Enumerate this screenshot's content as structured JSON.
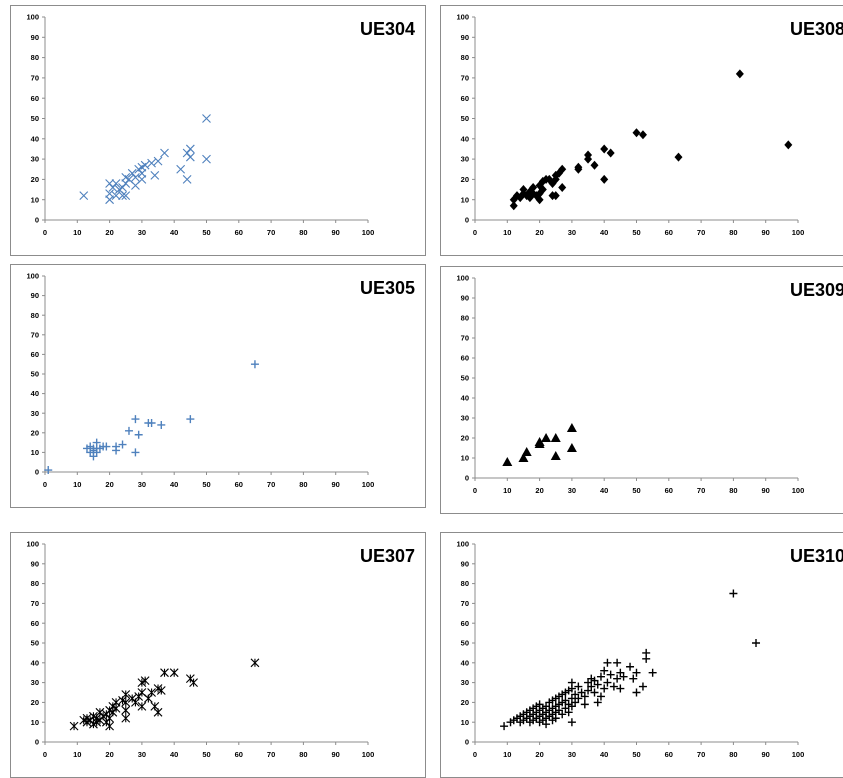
{
  "chart_data": [
    {
      "type": "scatter",
      "title": "UE304",
      "marker": "x",
      "color": "#4f81bd",
      "xlim": [
        0,
        100
      ],
      "ylim": [
        0,
        100
      ],
      "xticks": [
        0,
        10,
        20,
        30,
        40,
        50,
        60,
        70,
        80,
        90,
        100
      ],
      "yticks": [
        0,
        10,
        20,
        30,
        40,
        50,
        60,
        70,
        80,
        90,
        100
      ],
      "grid": false,
      "series": [
        {
          "points": [
            [
              12,
              12
            ],
            [
              20,
              10
            ],
            [
              20,
              13
            ],
            [
              20,
              18
            ],
            [
              21,
              16
            ],
            [
              22,
              12
            ],
            [
              22,
              18
            ],
            [
              23,
              15
            ],
            [
              24,
              12
            ],
            [
              24,
              16
            ],
            [
              25,
              12
            ],
            [
              25,
              18
            ],
            [
              25,
              21
            ],
            [
              26,
              20
            ],
            [
              27,
              23
            ],
            [
              28,
              17
            ],
            [
              28,
              21
            ],
            [
              29,
              25
            ],
            [
              30,
              20
            ],
            [
              30,
              23
            ],
            [
              30,
              26
            ],
            [
              31,
              27
            ],
            [
              33,
              28
            ],
            [
              34,
              22
            ],
            [
              35,
              29
            ],
            [
              37,
              33
            ],
            [
              42,
              25
            ],
            [
              44,
              20
            ],
            [
              44,
              33
            ],
            [
              45,
              31
            ],
            [
              45,
              35
            ],
            [
              50,
              30
            ],
            [
              50,
              50
            ]
          ]
        }
      ]
    },
    {
      "type": "scatter",
      "title": "UE308",
      "marker": "diamond",
      "color": "#000000",
      "xlim": [
        0,
        100
      ],
      "ylim": [
        0,
        100
      ],
      "xticks": [
        0,
        10,
        20,
        30,
        40,
        50,
        60,
        70,
        80,
        90,
        100
      ],
      "yticks": [
        0,
        10,
        20,
        30,
        40,
        50,
        60,
        70,
        80,
        90,
        100
      ],
      "grid": false,
      "series": [
        {
          "points": [
            [
              12,
              7
            ],
            [
              12,
              10
            ],
            [
              13,
              12
            ],
            [
              14,
              11
            ],
            [
              15,
              13
            ],
            [
              15,
              15
            ],
            [
              16,
              12
            ],
            [
              17,
              11
            ],
            [
              17,
              14
            ],
            [
              18,
              13
            ],
            [
              18,
              16
            ],
            [
              19,
              12
            ],
            [
              20,
              10
            ],
            [
              20,
              13
            ],
            [
              20,
              17
            ],
            [
              21,
              19
            ],
            [
              21,
              15
            ],
            [
              22,
              20
            ],
            [
              23,
              20
            ],
            [
              24,
              12
            ],
            [
              24,
              18
            ],
            [
              25,
              12
            ],
            [
              25,
              20
            ],
            [
              25,
              22
            ],
            [
              26,
              23
            ],
            [
              27,
              16
            ],
            [
              27,
              25
            ],
            [
              32,
              25
            ],
            [
              32,
              26
            ],
            [
              35,
              30
            ],
            [
              35,
              32
            ],
            [
              37,
              27
            ],
            [
              40,
              20
            ],
            [
              40,
              35
            ],
            [
              42,
              33
            ],
            [
              50,
              43
            ],
            [
              52,
              42
            ],
            [
              63,
              31
            ],
            [
              82,
              72
            ],
            [
              97,
              37
            ]
          ]
        }
      ]
    },
    {
      "type": "scatter",
      "title": "UE305",
      "marker": "plus",
      "color": "#4f81bd",
      "xlim": [
        0,
        100
      ],
      "ylim": [
        0,
        100
      ],
      "xticks": [
        0,
        10,
        20,
        30,
        40,
        50,
        60,
        70,
        80,
        90,
        100
      ],
      "yticks": [
        0,
        10,
        20,
        30,
        40,
        50,
        60,
        70,
        80,
        90,
        100
      ],
      "grid": false,
      "series": [
        {
          "points": [
            [
              1,
              1
            ],
            [
              13,
              12
            ],
            [
              14,
              10
            ],
            [
              14,
              13
            ],
            [
              15,
              8
            ],
            [
              15,
              11
            ],
            [
              15,
              12
            ],
            [
              16,
              10
            ],
            [
              16,
              12
            ],
            [
              16,
              15
            ],
            [
              17,
              12
            ],
            [
              18,
              13
            ],
            [
              19,
              13
            ],
            [
              22,
              11
            ],
            [
              22,
              13
            ],
            [
              24,
              14
            ],
            [
              26,
              21
            ],
            [
              28,
              10
            ],
            [
              28,
              27
            ],
            [
              29,
              19
            ],
            [
              32,
              25
            ],
            [
              33,
              25
            ],
            [
              36,
              24
            ],
            [
              45,
              27
            ],
            [
              65,
              55
            ]
          ]
        }
      ]
    },
    {
      "type": "scatter",
      "title": "UE309",
      "marker": "triangle",
      "color": "#000000",
      "xlim": [
        0,
        100
      ],
      "ylim": [
        0,
        100
      ],
      "xticks": [
        0,
        10,
        20,
        30,
        40,
        50,
        60,
        70,
        80,
        90,
        100
      ],
      "yticks": [
        0,
        10,
        20,
        30,
        40,
        50,
        60,
        70,
        80,
        90,
        100
      ],
      "grid": false,
      "series": [
        {
          "points": [
            [
              10,
              8
            ],
            [
              15,
              10
            ],
            [
              16,
              13
            ],
            [
              20,
              17
            ],
            [
              20,
              18
            ],
            [
              22,
              20
            ],
            [
              25,
              11
            ],
            [
              25,
              20
            ],
            [
              30,
              15
            ],
            [
              30,
              25
            ]
          ]
        }
      ]
    },
    {
      "type": "scatter",
      "title": "UE307",
      "marker": "asterisk",
      "color": "#000000",
      "xlim": [
        0,
        100
      ],
      "ylim": [
        0,
        100
      ],
      "xticks": [
        0,
        10,
        20,
        30,
        40,
        50,
        60,
        70,
        80,
        90,
        100
      ],
      "yticks": [
        0,
        10,
        20,
        30,
        40,
        50,
        60,
        70,
        80,
        90,
        100
      ],
      "grid": false,
      "series": [
        {
          "points": [
            [
              9,
              8
            ],
            [
              12,
              11
            ],
            [
              13,
              10
            ],
            [
              13,
              12
            ],
            [
              14,
              11
            ],
            [
              15,
              9
            ],
            [
              15,
              13
            ],
            [
              16,
              10
            ],
            [
              16,
              12
            ],
            [
              17,
              11
            ],
            [
              17,
              15
            ],
            [
              18,
              13
            ],
            [
              19,
              10
            ],
            [
              19,
              14
            ],
            [
              20,
              8
            ],
            [
              20,
              12
            ],
            [
              20,
              16
            ],
            [
              21,
              15
            ],
            [
              21,
              18
            ],
            [
              22,
              17
            ],
            [
              22,
              20
            ],
            [
              24,
              21
            ],
            [
              25,
              12
            ],
            [
              25,
              16
            ],
            [
              25,
              20
            ],
            [
              25,
              24
            ],
            [
              27,
              22
            ],
            [
              28,
              20
            ],
            [
              29,
              23
            ],
            [
              30,
              18
            ],
            [
              30,
              25
            ],
            [
              30,
              30
            ],
            [
              31,
              31
            ],
            [
              32,
              22
            ],
            [
              33,
              25
            ],
            [
              34,
              18
            ],
            [
              35,
              15
            ],
            [
              35,
              27
            ],
            [
              36,
              26
            ],
            [
              37,
              35
            ],
            [
              40,
              35
            ],
            [
              45,
              32
            ],
            [
              46,
              30
            ],
            [
              65,
              40
            ]
          ]
        }
      ]
    },
    {
      "type": "scatter",
      "title": "UE310",
      "marker": "plus",
      "color": "#000000",
      "xlim": [
        0,
        100
      ],
      "ylim": [
        0,
        100
      ],
      "xticks": [
        0,
        10,
        20,
        30,
        40,
        50,
        60,
        70,
        80,
        90,
        100
      ],
      "yticks": [
        0,
        10,
        20,
        30,
        40,
        50,
        60,
        70,
        80,
        90,
        100
      ],
      "grid": false,
      "series": [
        {
          "points": [
            [
              9,
              8
            ],
            [
              11,
              10
            ],
            [
              12,
              11
            ],
            [
              13,
              12
            ],
            [
              14,
              10
            ],
            [
              14,
              13
            ],
            [
              15,
              11
            ],
            [
              15,
              14
            ],
            [
              16,
              12
            ],
            [
              16,
              15
            ],
            [
              17,
              10
            ],
            [
              17,
              13
            ],
            [
              17,
              16
            ],
            [
              18,
              11
            ],
            [
              18,
              14
            ],
            [
              18,
              17
            ],
            [
              19,
              12
            ],
            [
              19,
              15
            ],
            [
              19,
              18
            ],
            [
              20,
              10
            ],
            [
              20,
              13
            ],
            [
              20,
              16
            ],
            [
              20,
              19
            ],
            [
              21,
              11
            ],
            [
              21,
              14
            ],
            [
              21,
              17
            ],
            [
              22,
              9
            ],
            [
              22,
              12
            ],
            [
              22,
              15
            ],
            [
              22,
              18
            ],
            [
              23,
              13
            ],
            [
              23,
              16
            ],
            [
              23,
              20
            ],
            [
              24,
              11
            ],
            [
              24,
              14
            ],
            [
              24,
              17
            ],
            [
              24,
              21
            ],
            [
              25,
              12
            ],
            [
              25,
              15
            ],
            [
              25,
              18
            ],
            [
              25,
              22
            ],
            [
              26,
              16
            ],
            [
              26,
              19
            ],
            [
              26,
              23
            ],
            [
              27,
              14
            ],
            [
              27,
              20
            ],
            [
              27,
              24
            ],
            [
              28,
              17
            ],
            [
              28,
              21
            ],
            [
              28,
              25
            ],
            [
              29,
              15
            ],
            [
              29,
              19
            ],
            [
              29,
              26
            ],
            [
              30,
              10
            ],
            [
              30,
              18
            ],
            [
              30,
              22
            ],
            [
              30,
              27
            ],
            [
              30,
              30
            ],
            [
              31,
              20
            ],
            [
              31,
              24
            ],
            [
              32,
              22
            ],
            [
              32,
              28
            ],
            [
              33,
              25
            ],
            [
              34,
              19
            ],
            [
              34,
              23
            ],
            [
              35,
              26
            ],
            [
              35,
              30
            ],
            [
              36,
              28
            ],
            [
              36,
              32
            ],
            [
              37,
              25
            ],
            [
              37,
              31
            ],
            [
              38,
              20
            ],
            [
              38,
              29
            ],
            [
              39,
              23
            ],
            [
              39,
              33
            ],
            [
              40,
              27
            ],
            [
              40,
              36
            ],
            [
              41,
              30
            ],
            [
              41,
              40
            ],
            [
              42,
              34
            ],
            [
              43,
              28
            ],
            [
              44,
              32
            ],
            [
              44,
              40
            ],
            [
              45,
              27
            ],
            [
              45,
              35
            ],
            [
              46,
              33
            ],
            [
              48,
              38
            ],
            [
              49,
              32
            ],
            [
              50,
              25
            ],
            [
              50,
              35
            ],
            [
              52,
              28
            ],
            [
              53,
              42
            ],
            [
              53,
              45
            ],
            [
              55,
              35
            ],
            [
              80,
              75
            ],
            [
              87,
              50
            ]
          ]
        }
      ]
    }
  ]
}
